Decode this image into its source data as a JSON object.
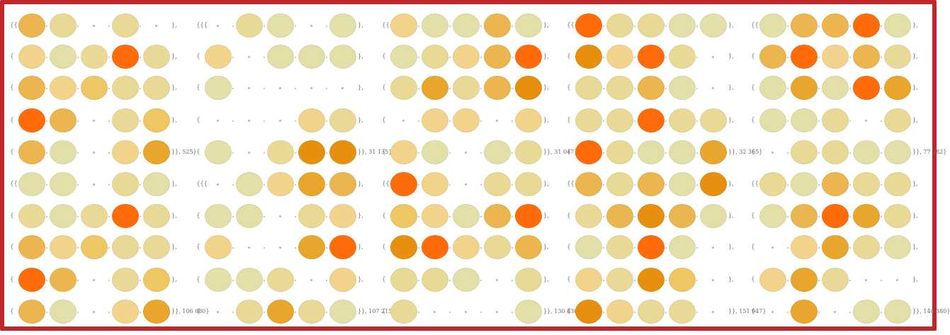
{
  "palette": {
    "0": "#e2dfa9",
    "1": "#e9d996",
    "2": "#f1d38c",
    "3": "#efc664",
    "4": "#ebb64f",
    "5": "#e8a62d",
    "6": "#e7900f",
    "7": "#ff7517",
    "8": "#ff6c09"
  },
  "panels": [
    {
      "open_brace": "{{{",
      "rows": [
        [
          4,
          1,
          null,
          1,
          null
        ],
        [
          2,
          0,
          1,
          8,
          1
        ],
        [
          4,
          2,
          3,
          1,
          1
        ],
        [
          8,
          4,
          null,
          1,
          3
        ],
        [
          4,
          0,
          null,
          2,
          5
        ],
        [
          0,
          0,
          null,
          1,
          0
        ],
        [
          1,
          0,
          1,
          8,
          1
        ],
        [
          4,
          2,
          3,
          1,
          1
        ],
        [
          8,
          4,
          null,
          1,
          3
        ],
        [
          4,
          0,
          null,
          2,
          5
        ]
      ],
      "row_open": [
        "{{{",
        "{",
        "{",
        "{",
        "{",
        "{{{",
        "{",
        "{",
        "{",
        "{"
      ],
      "row_close": [
        "},",
        "},",
        "},",
        "},",
        "}}, 525}",
        "},",
        "},",
        "},",
        "},",
        "}}, 106 080}"
      ]
    },
    {
      "rows": [
        [
          null,
          1,
          0,
          null,
          0
        ],
        [
          2,
          null,
          0,
          0,
          0
        ],
        [
          0,
          null,
          null,
          null,
          null
        ],
        [
          null,
          null,
          null,
          2,
          1
        ],
        [
          0,
          null,
          1,
          6,
          6
        ],
        [
          null,
          0,
          2,
          5,
          4
        ],
        [
          0,
          0,
          null,
          1,
          2
        ],
        [
          2,
          null,
          null,
          5,
          8
        ],
        [
          0,
          0,
          1,
          null,
          2
        ],
        [
          null,
          1,
          5,
          1,
          0
        ]
      ],
      "row_open": [
        "{{{",
        "{",
        "{",
        "{",
        "{",
        "{{{",
        "{",
        "{",
        "{",
        "{"
      ],
      "row_close": [
        "},",
        "},",
        "},",
        "},",
        "}}, 31 135}",
        "},",
        "},",
        "},",
        "},",
        "}}, 107 215}"
      ]
    },
    {
      "rows": [
        [
          2,
          0,
          0,
          4,
          0
        ],
        [
          0,
          1,
          2,
          4,
          8
        ],
        [
          1,
          5,
          1,
          4,
          6
        ],
        [
          null,
          2,
          2,
          null,
          2
        ],
        [
          2,
          0,
          null,
          0,
          1
        ],
        [
          8,
          2,
          null,
          1,
          1
        ],
        [
          3,
          2,
          0,
          4,
          8
        ],
        [
          6,
          8,
          2,
          1,
          4
        ],
        [
          1,
          1,
          0,
          null,
          1
        ],
        [
          1,
          null,
          null,
          null,
          0
        ]
      ],
      "row_open": [
        "{{{",
        "{",
        "{",
        "{",
        "{",
        "{{{",
        "{",
        "{",
        "{",
        "{"
      ],
      "row_close": [
        "},",
        "},",
        "},",
        "},",
        "}}, 31 047}",
        "},",
        "},",
        "},",
        "},",
        "}}, 130 830}"
      ]
    },
    {
      "rows": [
        [
          8,
          1,
          1,
          0,
          0
        ],
        [
          6,
          2,
          8,
          1,
          null
        ],
        [
          1,
          1,
          4,
          0,
          null
        ],
        [
          1,
          1,
          8,
          1,
          1
        ],
        [
          8,
          1,
          0,
          0,
          5
        ],
        [
          4,
          1,
          4,
          0,
          6
        ],
        [
          1,
          4,
          6,
          4,
          0
        ],
        [
          0,
          1,
          8,
          0,
          null
        ],
        [
          2,
          1,
          6,
          3,
          null
        ],
        [
          6,
          2,
          1,
          1,
          null
        ]
      ],
      "row_open": [
        "{{{",
        "{",
        "{",
        "{",
        "{",
        "{{{",
        "{",
        "{",
        "{",
        "{"
      ],
      "row_close": [
        "},",
        "},",
        "},",
        "},",
        "}}, 32 365}",
        "},",
        "},",
        "},",
        "},",
        "}}, 151 947}"
      ]
    },
    {
      "rows": [
        [
          0,
          4,
          4,
          8,
          0
        ],
        [
          4,
          8,
          2,
          4,
          1
        ],
        [
          0,
          5,
          0,
          8,
          5
        ],
        [
          0,
          0,
          1,
          null,
          1
        ],
        [
          null,
          1,
          1,
          0,
          0
        ],
        [
          1,
          0,
          4,
          1,
          1
        ],
        [
          0,
          4,
          8,
          5,
          1
        ],
        [
          null,
          2,
          5,
          1,
          0
        ],
        [
          2,
          5,
          1,
          null,
          null
        ],
        [
          null,
          5,
          null,
          0,
          0
        ]
      ],
      "row_open": [
        "{{{",
        "{",
        "{",
        "{",
        "{",
        "{{{",
        "{",
        "{",
        "{",
        "{"
      ],
      "row_close": [
        "},",
        "},",
        "},",
        "},",
        "}}, 77 382}",
        "},",
        "},",
        "},",
        "},",
        "}}, 140 380}"
      ]
    }
  ]
}
